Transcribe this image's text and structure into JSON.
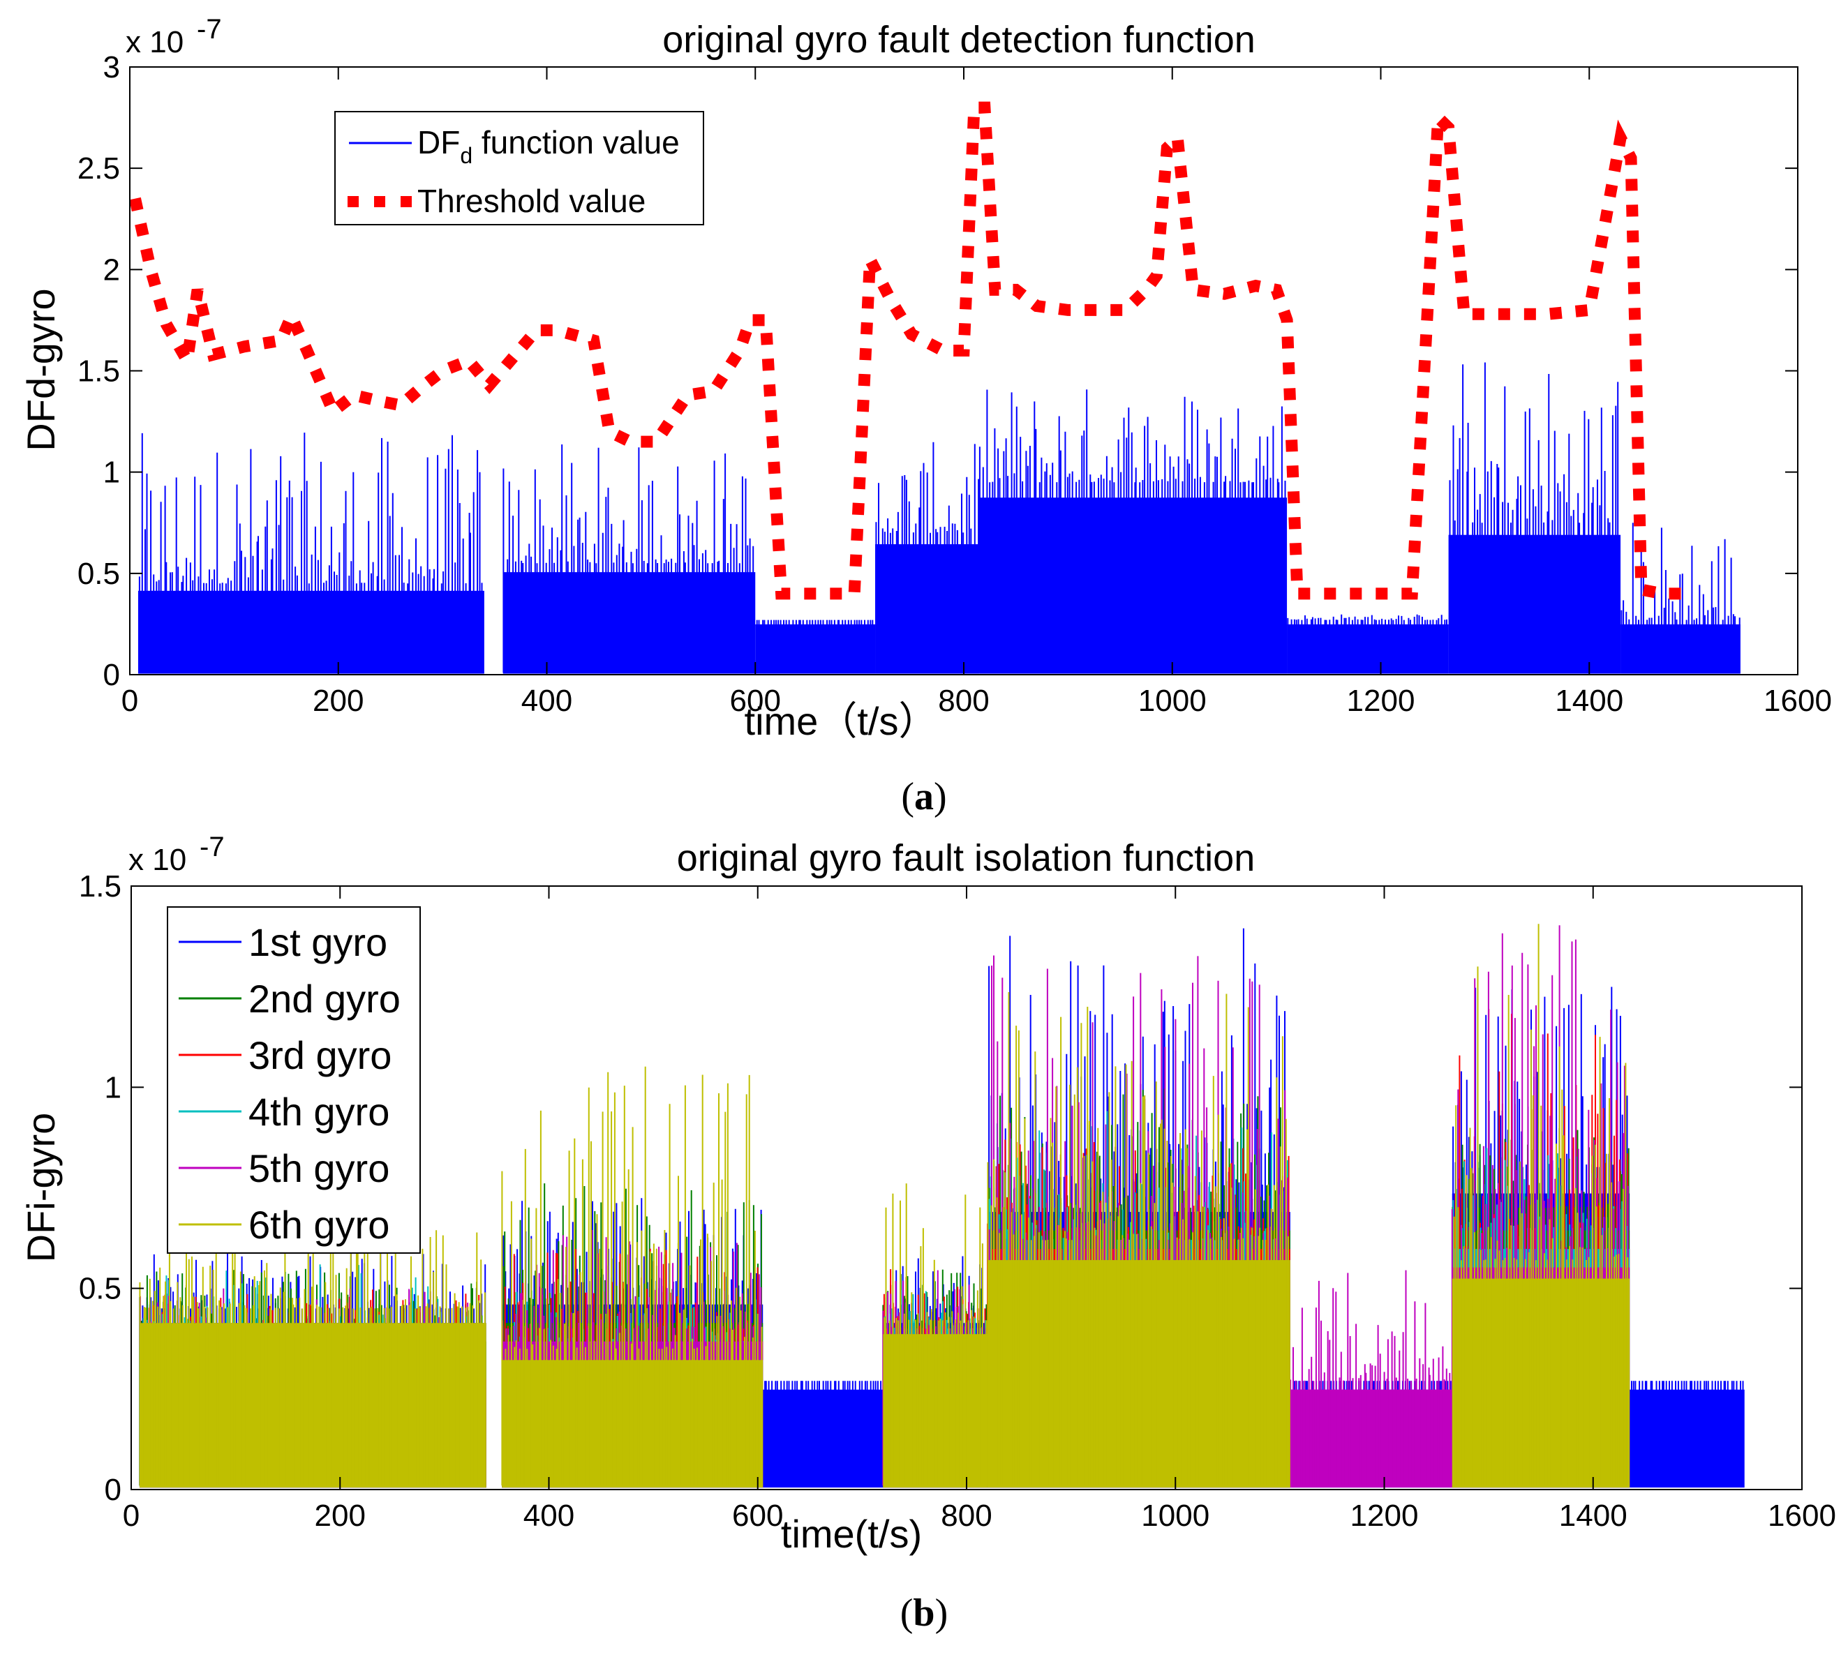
{
  "figure": {
    "panel_a_label": "a",
    "panel_b_label": "b"
  },
  "chart_data": [
    {
      "type": "line",
      "title": "original gyro fault detection function",
      "xlabel": "time（t/s）",
      "ylabel": "DFd-gyro",
      "y_exponent": "x 10",
      "y_exponent_power": "-7",
      "xlim": [
        0,
        1600
      ],
      "ylim": [
        0,
        3
      ],
      "xticks": [
        "0",
        "200",
        "400",
        "600",
        "800",
        "1000",
        "1200",
        "1400",
        "1600"
      ],
      "yticks": [
        "0",
        "0.5",
        "1",
        "1.5",
        "2",
        "2.5",
        "3"
      ],
      "legend_position": "top-left",
      "series": [
        {
          "name": "DF",
          "name_sub": "d",
          "name_rest": " function value",
          "style": "noise-band",
          "color": "#0000ff",
          "segments": [
            {
              "x": [
                8,
                340
              ],
              "base": 0.45,
              "peak": 1.2
            },
            {
              "x": [
                358,
                600
              ],
              "base": 0.55,
              "peak": 1.15
            },
            {
              "x": [
                600,
                715
              ],
              "base": 0.27,
              "peak": 0.27
            },
            {
              "x": [
                715,
                815
              ],
              "base": 0.7,
              "peak": 1.15
            },
            {
              "x": [
                815,
                1110
              ],
              "base": 0.95,
              "peak": 1.45
            },
            {
              "x": [
                1110,
                1265
              ],
              "base": 0.27,
              "peak": 0.3
            },
            {
              "x": [
                1265,
                1430
              ],
              "base": 0.75,
              "peak": 1.6
            },
            {
              "x": [
                1430,
                1545
              ],
              "base": 0.27,
              "peak": 0.8
            }
          ]
        },
        {
          "name": "Threshold value",
          "style": "dotted",
          "color": "#ff0000",
          "x": [
            5,
            20,
            35,
            55,
            65,
            80,
            110,
            145,
            155,
            170,
            195,
            215,
            240,
            260,
            280,
            300,
            325,
            345,
            370,
            390,
            410,
            445,
            460,
            480,
            505,
            535,
            560,
            585,
            595,
            610,
            625,
            650,
            680,
            695,
            710,
            730,
            750,
            780,
            800,
            810,
            820,
            830,
            850,
            870,
            900,
            935,
            955,
            975,
            985,
            995,
            1005,
            1020,
            1050,
            1080,
            1100,
            1110,
            1120,
            1140,
            1165,
            1200,
            1230,
            1255,
            1265,
            1280,
            1295,
            1330,
            1360,
            1400,
            1430,
            1440,
            1450,
            1470,
            1500
          ],
          "values": [
            2.35,
            2.0,
            1.73,
            1.55,
            1.9,
            1.58,
            1.62,
            1.65,
            1.77,
            1.6,
            1.3,
            1.38,
            1.35,
            1.33,
            1.42,
            1.5,
            1.55,
            1.43,
            1.58,
            1.7,
            1.7,
            1.65,
            1.2,
            1.15,
            1.15,
            1.38,
            1.4,
            1.6,
            1.75,
            1.75,
            0.4,
            0.4,
            0.4,
            0.4,
            2.05,
            1.85,
            1.68,
            1.6,
            1.6,
            2.8,
            2.8,
            1.9,
            1.9,
            1.82,
            1.8,
            1.8,
            1.8,
            1.9,
            1.97,
            2.6,
            2.65,
            1.9,
            1.88,
            1.92,
            1.9,
            1.75,
            0.4,
            0.4,
            0.4,
            0.4,
            0.4,
            2.75,
            2.7,
            1.78,
            1.78,
            1.78,
            1.78,
            1.8,
            2.65,
            2.55,
            0.42,
            0.4,
            0.4
          ]
        }
      ]
    },
    {
      "type": "line",
      "title": "original gyro fault isolation function",
      "xlabel": "time(t/s)",
      "ylabel": "DFi-gyro",
      "y_exponent": "x 10",
      "y_exponent_power": "-7",
      "xlim": [
        0,
        1600
      ],
      "ylim": [
        0,
        1.5
      ],
      "xticks": [
        "0",
        "200",
        "400",
        "600",
        "800",
        "1000",
        "1200",
        "1400",
        "1600"
      ],
      "yticks": [
        "0",
        "0.5",
        "1",
        "1.5"
      ],
      "legend_position": "top-left",
      "series": [
        {
          "name": "1st gyro",
          "color": "#0000ff",
          "style": "noise-band",
          "segments": [
            {
              "x": [
                8,
                340
              ],
              "base": 0.45,
              "peak": 0.6
            },
            {
              "x": [
                355,
                605
              ],
              "base": 0.5,
              "peak": 0.78
            },
            {
              "x": [
                605,
                720
              ],
              "base": 0.27,
              "peak": 0.27
            },
            {
              "x": [
                720,
                820
              ],
              "base": 0.45,
              "peak": 0.6
            },
            {
              "x": [
                820,
                1110
              ],
              "base": 0.75,
              "peak": 1.4
            },
            {
              "x": [
                1110,
                1265
              ],
              "base": 0.27,
              "peak": 0.27
            },
            {
              "x": [
                1265,
                1435
              ],
              "base": 0.8,
              "peak": 1.25
            },
            {
              "x": [
                1435,
                1545
              ],
              "base": 0.27,
              "peak": 0.27
            }
          ]
        },
        {
          "name": "2nd gyro",
          "color": "#007f00",
          "style": "noise-band",
          "segments": [
            {
              "x": [
                8,
                340
              ],
              "base": 0.4,
              "peak": 0.55
            },
            {
              "x": [
                355,
                605
              ],
              "base": 0.45,
              "peak": 0.78
            },
            {
              "x": [
                720,
                820
              ],
              "base": 0.42,
              "peak": 0.55
            },
            {
              "x": [
                820,
                1110
              ],
              "base": 0.7,
              "peak": 1.0
            },
            {
              "x": [
                1265,
                1435
              ],
              "base": 0.7,
              "peak": 0.9
            }
          ]
        },
        {
          "name": "3rd gyro",
          "color": "#ff0000",
          "style": "noise-band",
          "segments": [
            {
              "x": [
                8,
                340
              ],
              "base": 0.35,
              "peak": 0.5
            },
            {
              "x": [
                355,
                605
              ],
              "base": 0.4,
              "peak": 0.6
            },
            {
              "x": [
                720,
                820
              ],
              "base": 0.4,
              "peak": 0.55
            },
            {
              "x": [
                820,
                1110
              ],
              "base": 0.65,
              "peak": 0.88
            },
            {
              "x": [
                1265,
                1435
              ],
              "base": 0.65,
              "peak": 1.2
            }
          ]
        },
        {
          "name": "4th gyro",
          "color": "#00bfbf",
          "style": "noise-band",
          "segments": [
            {
              "x": [
                8,
                340
              ],
              "base": 0.35,
              "peak": 0.56
            },
            {
              "x": [
                355,
                605
              ],
              "base": 0.35,
              "peak": 0.5
            },
            {
              "x": [
                720,
                820
              ],
              "base": 0.4,
              "peak": 0.5
            },
            {
              "x": [
                820,
                1110
              ],
              "base": 0.62,
              "peak": 0.95
            },
            {
              "x": [
                1265,
                1435
              ],
              "base": 0.65,
              "peak": 0.85
            }
          ]
        },
        {
          "name": "5th gyro",
          "color": "#bf00bf",
          "style": "noise-band",
          "segments": [
            {
              "x": [
                8,
                340
              ],
              "base": 0.3,
              "peak": 0.5
            },
            {
              "x": [
                355,
                605
              ],
              "base": 0.4,
              "peak": 0.65
            },
            {
              "x": [
                720,
                820
              ],
              "base": 0.4,
              "peak": 0.55
            },
            {
              "x": [
                820,
                1110
              ],
              "base": 0.62,
              "peak": 1.33
            },
            {
              "x": [
                1110,
                1265
              ],
              "base": 0.27,
              "peak": 0.55
            },
            {
              "x": [
                1265,
                1435
              ],
              "base": 0.6,
              "peak": 1.43
            }
          ]
        },
        {
          "name": "6th gyro",
          "color": "#bfbf00",
          "style": "noise-band",
          "segments": [
            {
              "x": [
                8,
                340
              ],
              "base": 0.45,
              "peak": 0.66
            },
            {
              "x": [
                355,
                605
              ],
              "base": 0.35,
              "peak": 1.06
            },
            {
              "x": [
                720,
                820
              ],
              "base": 0.42,
              "peak": 0.78
            },
            {
              "x": [
                820,
                1110
              ],
              "base": 0.62,
              "peak": 1.25
            },
            {
              "x": [
                1265,
                1435
              ],
              "base": 0.57,
              "peak": 1.43
            }
          ]
        }
      ]
    }
  ]
}
